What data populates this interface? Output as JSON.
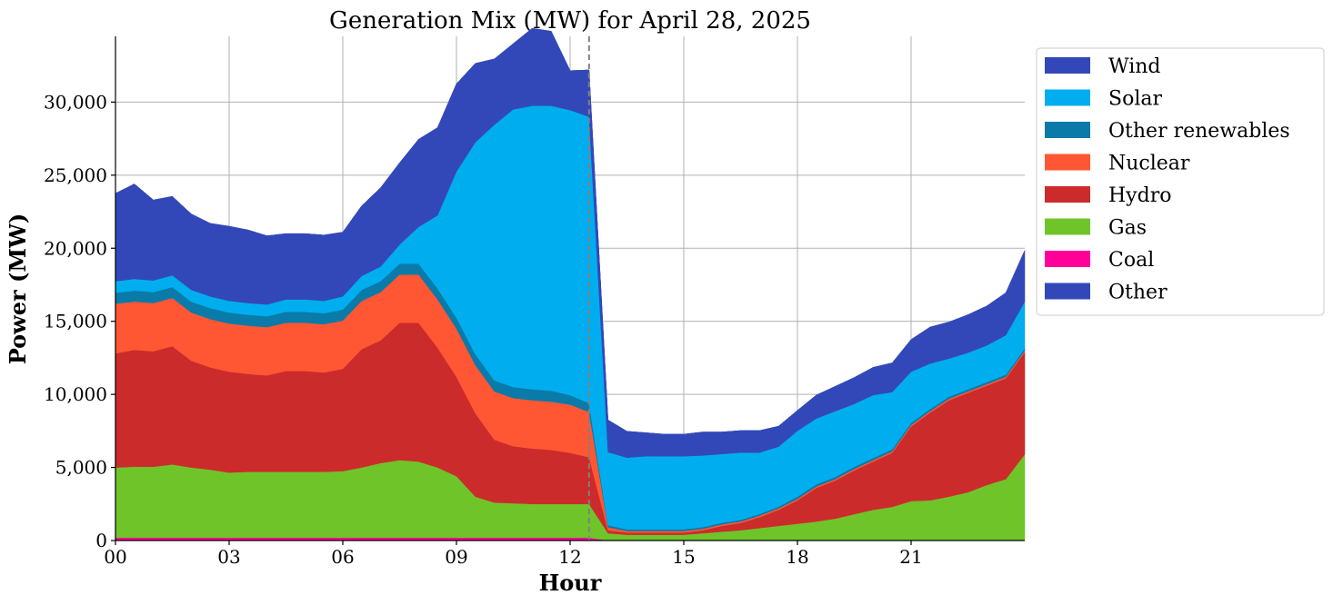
{
  "chart_data": {
    "type": "area",
    "stacked": true,
    "title": "Generation Mix (MW) for April 28, 2025",
    "xlabel": "Hour",
    "ylabel": "Power (MW)",
    "xlim": [
      0,
      24
    ],
    "ylim": [
      0,
      34500
    ],
    "x_ticks": [
      0,
      3,
      6,
      9,
      12,
      15,
      18,
      21
    ],
    "x_tick_labels": [
      "00",
      "03",
      "06",
      "09",
      "12",
      "15",
      "18",
      "21"
    ],
    "y_ticks": [
      0,
      5000,
      10000,
      15000,
      20000,
      25000,
      30000
    ],
    "y_tick_labels": [
      "0",
      "5,000",
      "10,000",
      "15,000",
      "20,000",
      "25,000",
      "30,000"
    ],
    "grid": true,
    "legend_position": "outside-right-top",
    "vertical_marker_x": 12.5,
    "x": [
      0,
      0.5,
      1,
      1.5,
      2,
      2.5,
      3,
      3.5,
      4,
      4.5,
      5,
      5.5,
      6,
      6.5,
      7,
      7.5,
      8,
      8.5,
      9,
      9.5,
      10,
      10.5,
      11,
      11.5,
      12,
      12.5,
      13,
      13.5,
      14,
      14.5,
      15,
      15.5,
      16,
      16.5,
      17,
      17.5,
      18,
      18.5,
      19,
      19.5,
      20,
      20.5,
      21,
      21.5,
      22,
      22.5,
      23,
      23.5,
      24
    ],
    "series": [
      {
        "name": "Coal",
        "color": "#ff0099",
        "values": [
          200,
          200,
          200,
          200,
          200,
          200,
          200,
          200,
          200,
          200,
          200,
          200,
          200,
          200,
          200,
          200,
          200,
          200,
          200,
          200,
          200,
          200,
          200,
          200,
          200,
          200,
          0,
          0,
          0,
          0,
          0,
          0,
          0,
          0,
          0,
          0,
          0,
          0,
          0,
          0,
          0,
          0,
          0,
          0,
          0,
          0,
          0,
          0,
          0
        ]
      },
      {
        "name": "Gas",
        "color": "#6fc42a",
        "values": [
          4800,
          4850,
          4850,
          5000,
          4800,
          4650,
          4450,
          4500,
          4500,
          4500,
          4500,
          4500,
          4550,
          4800,
          5100,
          5300,
          5200,
          4800,
          4200,
          2800,
          2400,
          2350,
          2300,
          2300,
          2300,
          2300,
          500,
          400,
          400,
          400,
          400,
          500,
          600,
          700,
          850,
          1000,
          1150,
          1300,
          1500,
          1800,
          2100,
          2300,
          2700,
          2750,
          3000,
          3300,
          3800,
          4200,
          5900
        ]
      },
      {
        "name": "Hydro",
        "color": "#cc2b2b",
        "values": [
          7800,
          8000,
          7900,
          8100,
          7300,
          7000,
          6900,
          6700,
          6600,
          6900,
          6900,
          6800,
          7000,
          8100,
          8400,
          9400,
          9500,
          8200,
          6800,
          5700,
          4300,
          3900,
          3800,
          3700,
          3500,
          3200,
          200,
          150,
          150,
          150,
          150,
          200,
          400,
          500,
          750,
          1100,
          1600,
          2300,
          2600,
          3000,
          3300,
          3700,
          5100,
          6000,
          6600,
          6800,
          6800,
          6900,
          7000
        ]
      },
      {
        "name": "Nuclear",
        "color": "#ff5733",
        "values": [
          3400,
          3300,
          3300,
          3300,
          3300,
          3300,
          3300,
          3300,
          3300,
          3300,
          3300,
          3300,
          3300,
          3300,
          3300,
          3300,
          3300,
          3300,
          3300,
          3300,
          3300,
          3300,
          3300,
          3300,
          3300,
          3100,
          200,
          100,
          100,
          100,
          100,
          100,
          100,
          100,
          100,
          100,
          100,
          100,
          100,
          100,
          100,
          100,
          100,
          100,
          100,
          100,
          100,
          100,
          100
        ]
      },
      {
        "name": "Other renewables",
        "color": "#0a7aa8",
        "values": [
          750,
          750,
          750,
          750,
          750,
          750,
          750,
          750,
          750,
          750,
          750,
          750,
          750,
          750,
          750,
          750,
          750,
          750,
          750,
          750,
          750,
          750,
          750,
          750,
          650,
          600,
          150,
          120,
          120,
          120,
          120,
          120,
          120,
          120,
          120,
          120,
          150,
          150,
          150,
          150,
          150,
          150,
          150,
          150,
          150,
          150,
          150,
          150,
          150
        ]
      },
      {
        "name": "Solar",
        "color": "#00aeef",
        "values": [
          800,
          800,
          800,
          800,
          800,
          800,
          800,
          800,
          800,
          850,
          850,
          850,
          900,
          950,
          1000,
          1300,
          2500,
          5000,
          10000,
          14500,
          17500,
          19000,
          19400,
          19500,
          19500,
          19600,
          5000,
          4900,
          5000,
          5000,
          5000,
          4900,
          4700,
          4600,
          4200,
          4100,
          4500,
          4500,
          4500,
          4300,
          4300,
          3900,
          3500,
          3100,
          2600,
          2500,
          2500,
          2700,
          3200
        ]
      },
      {
        "name": "Wind",
        "color": "#3348b8",
        "values": [
          6000,
          6500,
          5500,
          5400,
          5200,
          5000,
          5100,
          5000,
          4700,
          4500,
          4500,
          4500,
          4400,
          4800,
          5400,
          5600,
          6000,
          6000,
          6000,
          5400,
          4500,
          4500,
          5300,
          5100,
          2700,
          3200,
          2200,
          1800,
          1600,
          1500,
          1500,
          1600,
          1500,
          1500,
          1500,
          1400,
          1400,
          1600,
          1700,
          1800,
          1900,
          2000,
          2200,
          2500,
          2500,
          2600,
          2700,
          2900,
          3500
        ]
      },
      {
        "name": "Other",
        "color": "#3348b8",
        "values": [
          0,
          0,
          0,
          0,
          0,
          0,
          0,
          0,
          0,
          0,
          0,
          0,
          0,
          0,
          0,
          0,
          0,
          0,
          0,
          0,
          0,
          0,
          0,
          0,
          0,
          0,
          0,
          0,
          0,
          0,
          0,
          0,
          0,
          0,
          0,
          0,
          0,
          0,
          0,
          0,
          0,
          0,
          0,
          0,
          0,
          0,
          0,
          0,
          0
        ]
      }
    ],
    "legend": [
      {
        "label": "Wind",
        "color": "#3348b8"
      },
      {
        "label": "Solar",
        "color": "#00aeef"
      },
      {
        "label": "Other renewables",
        "color": "#0a7aa8"
      },
      {
        "label": "Nuclear",
        "color": "#ff5733"
      },
      {
        "label": "Hydro",
        "color": "#cc2b2b"
      },
      {
        "label": "Gas",
        "color": "#6fc42a"
      },
      {
        "label": "Coal",
        "color": "#ff0099"
      },
      {
        "label": "Other",
        "color": "#3348b8"
      }
    ]
  }
}
